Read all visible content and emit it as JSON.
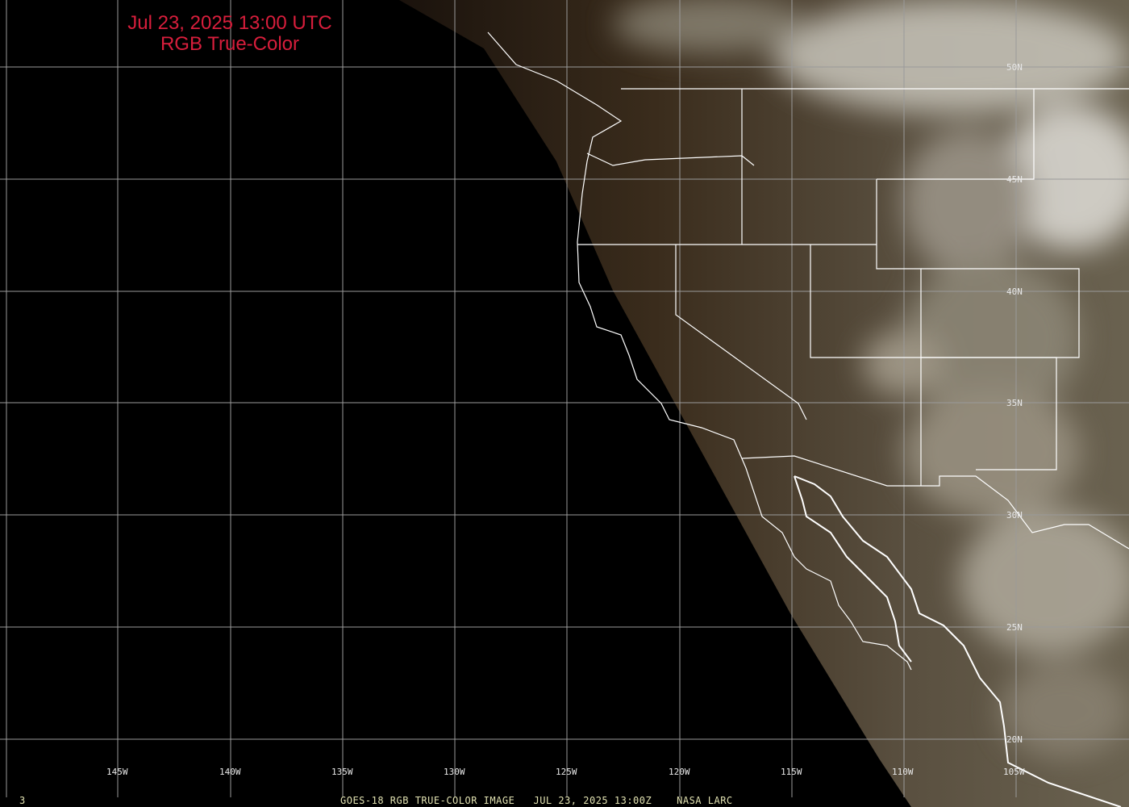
{
  "title": {
    "line1": "Jul 23, 2025 13:00 UTC",
    "line2": "RGB True-Color"
  },
  "longitude_labels": [
    "145W",
    "140W",
    "135W",
    "130W",
    "125W",
    "120W",
    "115W",
    "110W",
    "105W"
  ],
  "latitude_labels": [
    "50N",
    "45N",
    "40N",
    "35N",
    "30N",
    "25N",
    "20N"
  ],
  "footer": {
    "frame_number": "3",
    "caption": "GOES-18 RGB TRUE-COLOR IMAGE   JUL 23, 2025 13:00Z    NASA LARC"
  },
  "colors": {
    "title": "#d81e3c",
    "grid": "#9a9a9a",
    "borders": "#ffffff",
    "background": "#000000"
  }
}
